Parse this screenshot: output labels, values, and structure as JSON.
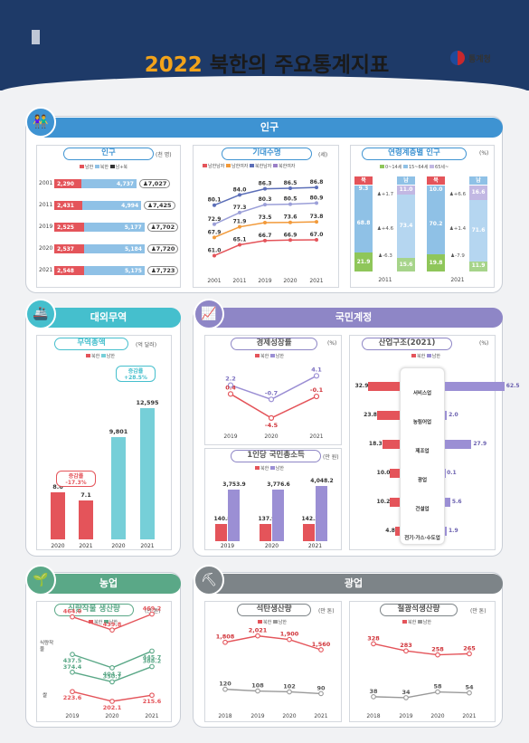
{
  "header": {
    "year": "2022",
    "title": "북한의 주요통계지표",
    "logo_text": "통계청"
  },
  "colors": {
    "south": "#e4545a",
    "north": "#8fc1e6",
    "navy": "#1e3a68",
    "pop": "#3e93d2",
    "trade": "#45bfcd",
    "nat": "#8e86c6",
    "agri": "#5aa887",
    "mine": "#7d8488"
  },
  "sections": {
    "population": "인구",
    "trade": "대외무역",
    "national_accounts": "국민계정",
    "agriculture": "농업",
    "mining": "광업"
  },
  "chart_data": [
    {
      "id": "population",
      "type": "bar",
      "title": "인구",
      "unit": "(천 명)",
      "legend": [
        "남한",
        "북한",
        "남+북"
      ],
      "categories": [
        "2001",
        "2011",
        "2019",
        "2020",
        "2021"
      ],
      "series": [
        {
          "name": "남한",
          "values": [
            2290,
            2431,
            2525,
            2537,
            2548
          ]
        },
        {
          "name": "북한",
          "values": [
            4737,
            4994,
            5177,
            5184,
            5175
          ]
        },
        {
          "name": "남+북",
          "values": [
            7027,
            7425,
            7702,
            7720,
            7723
          ]
        }
      ],
      "display": {
        "south": [
          "2,290",
          "2,431",
          "2,525",
          "2,537",
          "2,548"
        ],
        "north": [
          "4,737",
          "4,994",
          "5,177",
          "5,184",
          "5,175"
        ],
        "total": [
          "7,027",
          "7,425",
          "7,702",
          "7,720",
          "7,723"
        ]
      }
    },
    {
      "id": "life",
      "type": "line",
      "title": "기대수명",
      "unit": "(세)",
      "legend": [
        "남한남자",
        "남한여자",
        "북한남자",
        "북한여자"
      ],
      "x": [
        "2001",
        "2011",
        "2019",
        "2020",
        "2021"
      ],
      "series": [
        {
          "name": "남한여자",
          "values": [
            80.1,
            84.0,
            86.3,
            86.5,
            86.8
          ]
        },
        {
          "name": "남한남자",
          "values": [
            72.9,
            77.3,
            80.3,
            80.5,
            80.9
          ]
        },
        {
          "name": "북한여자",
          "values": [
            67.9,
            71.9,
            73.5,
            73.6,
            73.8
          ]
        },
        {
          "name": "북한남자",
          "values": [
            61.0,
            65.1,
            66.7,
            66.9,
            67.0
          ]
        }
      ]
    },
    {
      "id": "age",
      "type": "bar",
      "title": "연령계층별 인구",
      "unit": "(%)",
      "legend": [
        "0~14세",
        "15~64세",
        "65세~"
      ],
      "groups": [
        {
          "year": "2011",
          "north": [
            21.9,
            68.8,
            9.3
          ],
          "south": [
            15.6,
            73.4,
            11.0
          ],
          "diff": [
            "-6.3",
            "+4.6",
            "+1.7"
          ]
        },
        {
          "year": "2021",
          "north": [
            19.8,
            70.2,
            10.0
          ],
          "south": [
            11.9,
            71.6,
            16.6
          ],
          "diff": [
            "-7.9",
            "+1.4",
            "+6.6"
          ]
        }
      ],
      "labels": {
        "north": "북",
        "south": "남"
      }
    },
    {
      "id": "trade",
      "type": "bar",
      "title": "무역총액",
      "unit": "(억 달러)",
      "legend": [
        "북한",
        "남한"
      ],
      "x": [
        "2020",
        "2021",
        "2020",
        "2021"
      ],
      "north": [
        8.6,
        7.1
      ],
      "south": [
        9801,
        12595
      ],
      "north_disp": [
        "8.6",
        "7.1"
      ],
      "south_disp": [
        "9,801",
        "12,595"
      ],
      "north_rate": [
        "증감률",
        "-17.3%"
      ],
      "south_rate": [
        "증감률",
        "+28.5%"
      ]
    },
    {
      "id": "growth",
      "type": "line",
      "title": "경제성장률",
      "unit": "(%)",
      "legend": [
        "북한",
        "남한"
      ],
      "x": [
        "2019",
        "2020",
        "2021"
      ],
      "series": [
        {
          "name": "남한",
          "values": [
            2.2,
            -0.7,
            4.1
          ]
        },
        {
          "name": "북한",
          "values": [
            0.4,
            -4.5,
            -0.1
          ]
        }
      ]
    },
    {
      "id": "gni",
      "type": "bar",
      "title": "1인당 국민총소득",
      "unit": "(만 원)",
      "legend": [
        "북한",
        "남한"
      ],
      "x": [
        "2019",
        "2020",
        "2021"
      ],
      "north": [
        140.8,
        137.9,
        142.3
      ],
      "south": [
        3753.9,
        3776.6,
        4048.2
      ],
      "north_disp": [
        "140.8",
        "137.9",
        "142.3"
      ],
      "south_disp": [
        "3,753.9",
        "3,776.6",
        "4,048.2"
      ]
    },
    {
      "id": "industry",
      "type": "bar",
      "title": "산업구조(2021)",
      "unit": "(%)",
      "legend": [
        "북한",
        "남한"
      ],
      "categories": [
        "서비스업",
        "농림어업",
        "제조업",
        "광업",
        "건설업",
        "전기·가스·수도업"
      ],
      "north": [
        32.9,
        23.8,
        18.3,
        10.0,
        10.2,
        4.8
      ],
      "south": [
        62.5,
        2.0,
        27.9,
        0.1,
        5.6,
        1.9
      ]
    },
    {
      "id": "food",
      "type": "line",
      "title": "식량작물 생산량",
      "unit": "(만 톤)",
      "legend": [
        "북한",
        "남한"
      ],
      "x": [
        "2019",
        "2020",
        "2021"
      ],
      "groups": [
        "식량작물",
        "쌀"
      ],
      "series": [
        {
          "name": "북한 식량작물",
          "values": [
            464.0,
            439.8,
            469.2
          ]
        },
        {
          "name": "남한 식량작물",
          "values": [
            437.5,
            404.7,
            445.7
          ]
        },
        {
          "name": "남한 쌀",
          "values": [
            374.4,
            350.7,
            388.2
          ]
        },
        {
          "name": "북한 쌀",
          "values": [
            223.6,
            202.1,
            215.6
          ]
        }
      ]
    },
    {
      "id": "coal",
      "type": "line",
      "title": "석탄생산량",
      "unit": "(만 톤)",
      "legend": [
        "북한",
        "남한"
      ],
      "x": [
        "2018",
        "2019",
        "2020",
        "2021"
      ],
      "series": [
        {
          "name": "북한",
          "values": [
            1808,
            2021,
            1900,
            1560
          ]
        },
        {
          "name": "남한",
          "values": [
            120,
            108,
            102,
            90
          ]
        }
      ],
      "disp": {
        "north": [
          "1,808",
          "2,021",
          "1,900",
          "1,560"
        ],
        "south": [
          "120",
          "108",
          "102",
          "90"
        ]
      }
    },
    {
      "id": "iron",
      "type": "line",
      "title": "철광석생산량",
      "unit": "(만 톤)",
      "legend": [
        "북한",
        "남한"
      ],
      "x": [
        "2018",
        "2019",
        "2020",
        "2021"
      ],
      "series": [
        {
          "name": "북한",
          "values": [
            328,
            283,
            258,
            265
          ]
        },
        {
          "name": "남한",
          "values": [
            38,
            34,
            58,
            54
          ]
        }
      ]
    }
  ]
}
